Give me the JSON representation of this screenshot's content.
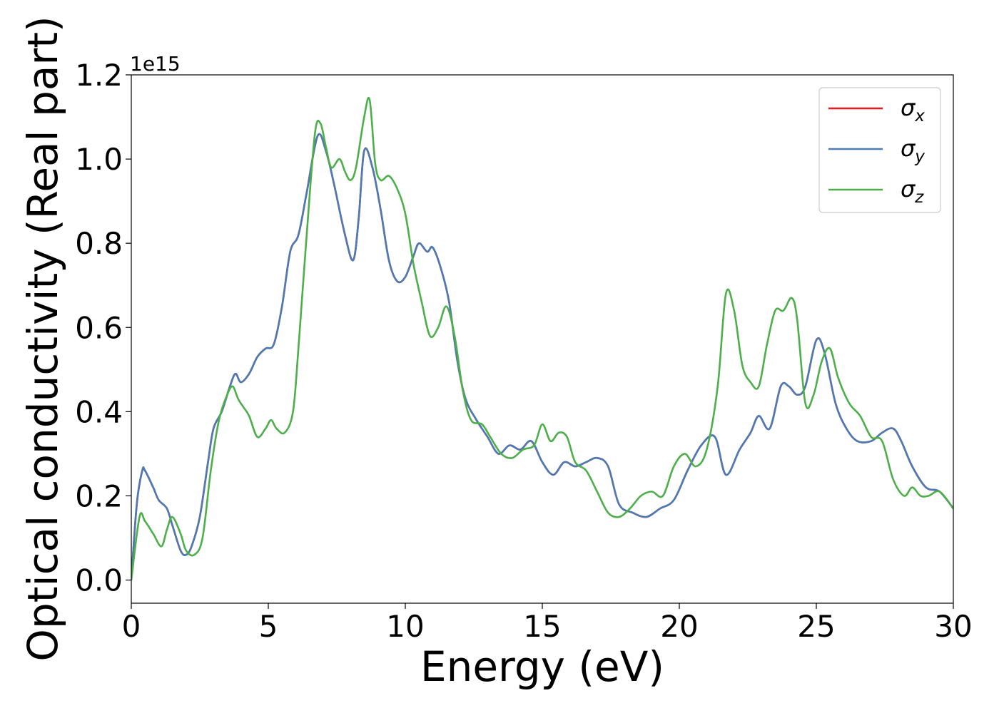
{
  "chart_data": {
    "type": "line",
    "title": "",
    "xlabel": "Energy (eV)",
    "ylabel": "Optical conductivity (Real part)",
    "y_offset_label": "1e15",
    "xlim": [
      0,
      30
    ],
    "ylim": [
      -0.055,
      1.2
    ],
    "xticks": [
      0,
      5,
      10,
      15,
      20,
      25,
      30
    ],
    "yticks": [
      0.0,
      0.2,
      0.4,
      0.6,
      0.8,
      1.0,
      1.2
    ],
    "grid": false,
    "legend_position": "top-right",
    "series": [
      {
        "name": "σx",
        "sym": "σ",
        "sub": "x",
        "color": "#e41a1c",
        "x": [
          0.0,
          0.2,
          0.4,
          0.5,
          0.8,
          1.0,
          1.3,
          1.5,
          1.8,
          2.0,
          2.2,
          2.5,
          2.8,
          3.0,
          3.3,
          3.6,
          3.8,
          4.0,
          4.3,
          4.6,
          4.9,
          5.2,
          5.5,
          5.8,
          6.1,
          6.4,
          6.8,
          7.1,
          7.4,
          7.8,
          8.1,
          8.3,
          8.5,
          8.8,
          9.1,
          9.4,
          9.7,
          10.0,
          10.3,
          10.5,
          10.8,
          11.0,
          11.3,
          11.6,
          11.9,
          12.2,
          12.6,
          13.0,
          13.4,
          13.8,
          14.2,
          14.6,
          15.0,
          15.4,
          15.8,
          16.2,
          16.6,
          17.0,
          17.4,
          17.8,
          18.3,
          18.8,
          19.3,
          19.8,
          20.3,
          20.8,
          21.3,
          21.7,
          22.2,
          22.6,
          22.9,
          23.3,
          23.7,
          24.0,
          24.3,
          24.6,
          25.0,
          25.3,
          25.7,
          26.1,
          26.5,
          27.0,
          27.4,
          27.8,
          28.1,
          28.5,
          29.0,
          29.5,
          30.0
        ],
        "values": [
          0.0,
          0.18,
          0.26,
          0.26,
          0.22,
          0.19,
          0.17,
          0.13,
          0.07,
          0.06,
          0.08,
          0.15,
          0.28,
          0.36,
          0.4,
          0.46,
          0.49,
          0.47,
          0.49,
          0.53,
          0.55,
          0.56,
          0.65,
          0.78,
          0.82,
          0.92,
          1.055,
          1.02,
          0.94,
          0.82,
          0.76,
          0.86,
          1.02,
          0.98,
          0.88,
          0.76,
          0.71,
          0.72,
          0.77,
          0.8,
          0.78,
          0.79,
          0.74,
          0.66,
          0.52,
          0.43,
          0.38,
          0.34,
          0.3,
          0.32,
          0.31,
          0.33,
          0.28,
          0.25,
          0.28,
          0.27,
          0.28,
          0.29,
          0.27,
          0.18,
          0.16,
          0.15,
          0.17,
          0.19,
          0.26,
          0.32,
          0.34,
          0.25,
          0.31,
          0.35,
          0.39,
          0.36,
          0.46,
          0.46,
          0.44,
          0.46,
          0.57,
          0.54,
          0.42,
          0.36,
          0.33,
          0.33,
          0.35,
          0.36,
          0.33,
          0.27,
          0.22,
          0.21,
          0.17
        ]
      },
      {
        "name": "σy",
        "sym": "σ",
        "sub": "y",
        "color": "#4a7bb5",
        "x": [
          0.0,
          0.2,
          0.4,
          0.5,
          0.8,
          1.0,
          1.3,
          1.5,
          1.8,
          2.0,
          2.2,
          2.5,
          2.8,
          3.0,
          3.3,
          3.6,
          3.8,
          4.0,
          4.3,
          4.6,
          4.9,
          5.2,
          5.5,
          5.8,
          6.1,
          6.4,
          6.8,
          7.1,
          7.4,
          7.8,
          8.1,
          8.3,
          8.5,
          8.8,
          9.1,
          9.4,
          9.7,
          10.0,
          10.3,
          10.5,
          10.8,
          11.0,
          11.3,
          11.6,
          11.9,
          12.2,
          12.6,
          13.0,
          13.4,
          13.8,
          14.2,
          14.6,
          15.0,
          15.4,
          15.8,
          16.2,
          16.6,
          17.0,
          17.4,
          17.8,
          18.3,
          18.8,
          19.3,
          19.8,
          20.3,
          20.8,
          21.3,
          21.7,
          22.2,
          22.6,
          22.9,
          23.3,
          23.7,
          24.0,
          24.3,
          24.6,
          25.0,
          25.3,
          25.7,
          26.1,
          26.5,
          27.0,
          27.4,
          27.8,
          28.1,
          28.5,
          29.0,
          29.5,
          30.0
        ],
        "values": [
          0.0,
          0.18,
          0.26,
          0.26,
          0.22,
          0.19,
          0.17,
          0.13,
          0.07,
          0.06,
          0.08,
          0.15,
          0.28,
          0.36,
          0.4,
          0.46,
          0.49,
          0.47,
          0.49,
          0.53,
          0.55,
          0.56,
          0.65,
          0.78,
          0.82,
          0.92,
          1.055,
          1.02,
          0.94,
          0.82,
          0.76,
          0.86,
          1.02,
          0.98,
          0.88,
          0.76,
          0.71,
          0.72,
          0.77,
          0.8,
          0.78,
          0.79,
          0.74,
          0.66,
          0.52,
          0.43,
          0.38,
          0.34,
          0.3,
          0.32,
          0.31,
          0.33,
          0.28,
          0.25,
          0.28,
          0.27,
          0.28,
          0.29,
          0.27,
          0.18,
          0.16,
          0.15,
          0.17,
          0.19,
          0.26,
          0.32,
          0.34,
          0.25,
          0.31,
          0.35,
          0.39,
          0.36,
          0.46,
          0.46,
          0.44,
          0.46,
          0.57,
          0.54,
          0.42,
          0.36,
          0.33,
          0.33,
          0.35,
          0.36,
          0.33,
          0.27,
          0.22,
          0.21,
          0.17
        ]
      },
      {
        "name": "σz",
        "sym": "σ",
        "sub": "z",
        "color": "#4daf4a",
        "x": [
          0.0,
          0.3,
          0.5,
          0.8,
          1.1,
          1.3,
          1.5,
          1.8,
          2.0,
          2.3,
          2.6,
          2.9,
          3.2,
          3.5,
          3.7,
          3.9,
          4.1,
          4.3,
          4.6,
          4.9,
          5.1,
          5.3,
          5.6,
          5.9,
          6.1,
          6.4,
          6.7,
          6.9,
          7.1,
          7.3,
          7.6,
          7.8,
          8.0,
          8.2,
          8.5,
          8.7,
          8.9,
          9.1,
          9.4,
          9.7,
          10.0,
          10.3,
          10.6,
          10.9,
          11.2,
          11.5,
          11.8,
          12.1,
          12.4,
          12.8,
          13.1,
          13.5,
          13.9,
          14.3,
          14.7,
          15.0,
          15.3,
          15.6,
          15.9,
          16.2,
          16.6,
          17.0,
          17.4,
          17.8,
          18.2,
          18.6,
          19.0,
          19.4,
          19.8,
          20.2,
          20.6,
          21.0,
          21.4,
          21.7,
          22.0,
          22.3,
          22.6,
          22.9,
          23.2,
          23.5,
          23.8,
          24.1,
          24.3,
          24.6,
          24.9,
          25.2,
          25.5,
          25.8,
          26.2,
          26.6,
          27.0,
          27.4,
          27.8,
          28.2,
          28.5,
          28.8,
          29.1,
          29.5,
          30.0
        ],
        "values": [
          0.0,
          0.15,
          0.14,
          0.11,
          0.08,
          0.12,
          0.15,
          0.11,
          0.07,
          0.06,
          0.1,
          0.26,
          0.38,
          0.44,
          0.46,
          0.43,
          0.41,
          0.39,
          0.34,
          0.36,
          0.38,
          0.36,
          0.35,
          0.4,
          0.55,
          0.82,
          1.06,
          1.085,
          1.03,
          0.98,
          1.0,
          0.97,
          0.95,
          0.98,
          1.1,
          1.14,
          0.99,
          0.95,
          0.96,
          0.93,
          0.87,
          0.75,
          0.66,
          0.58,
          0.6,
          0.65,
          0.58,
          0.45,
          0.38,
          0.37,
          0.34,
          0.3,
          0.29,
          0.31,
          0.32,
          0.37,
          0.33,
          0.35,
          0.34,
          0.28,
          0.26,
          0.21,
          0.16,
          0.15,
          0.17,
          0.2,
          0.21,
          0.2,
          0.27,
          0.3,
          0.27,
          0.31,
          0.46,
          0.68,
          0.64,
          0.51,
          0.47,
          0.46,
          0.56,
          0.64,
          0.64,
          0.67,
          0.62,
          0.42,
          0.44,
          0.52,
          0.55,
          0.48,
          0.42,
          0.39,
          0.34,
          0.33,
          0.24,
          0.2,
          0.22,
          0.2,
          0.2,
          0.21,
          0.17
        ]
      }
    ]
  }
}
